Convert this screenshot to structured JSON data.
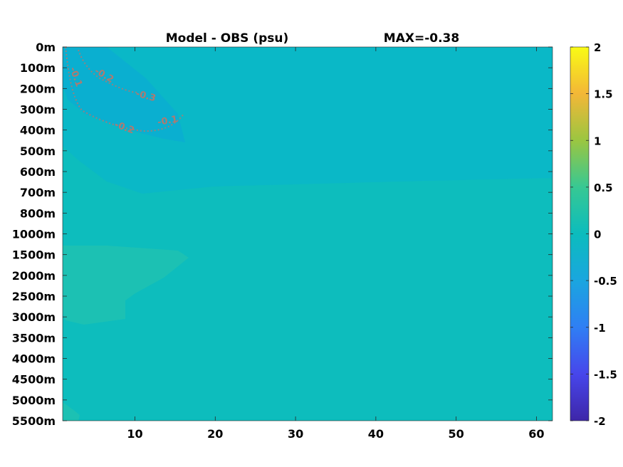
{
  "chart_data": {
    "type": "heatmap",
    "title": "Model - OBS (psu)",
    "annotation": "MAX=-0.38",
    "xlabel": "",
    "ylabel": "",
    "xlim": [
      1,
      62
    ],
    "x_ticks": [
      10,
      20,
      30,
      40,
      50,
      60
    ],
    "y_ticks": [
      "0m",
      "100m",
      "200m",
      "300m",
      "400m",
      "500m",
      "600m",
      "700m",
      "800m",
      "1000m",
      "1500m",
      "2000m",
      "2500m",
      "3000m",
      "3500m",
      "4000m",
      "4500m",
      "5000m",
      "5500m"
    ],
    "colorbar": {
      "range": [
        -2,
        2
      ],
      "ticks": [
        "2",
        "1.5",
        "1",
        "0.5",
        "0",
        "-0.5",
        "-1",
        "-1.5",
        "-2"
      ],
      "colormap": "parula"
    },
    "background_value": 0.0,
    "regions": [
      {
        "description": "negative anomaly upper west",
        "value": -0.3,
        "x_range": [
          1,
          16
        ],
        "depth_range": [
          "0m",
          "500m"
        ]
      },
      {
        "description": "weak negative anomaly",
        "value": -0.15,
        "x_range": [
          1,
          62
        ],
        "depth_range": [
          "200m",
          "600m"
        ]
      },
      {
        "description": "weak positive anomaly deep west",
        "value": 0.12,
        "x_range": [
          1,
          12
        ],
        "depth_range": [
          "1500m",
          "3000m"
        ]
      }
    ],
    "contour_labels": [
      "-0.1",
      "-0.2",
      "-0.3"
    ],
    "grid": false
  }
}
